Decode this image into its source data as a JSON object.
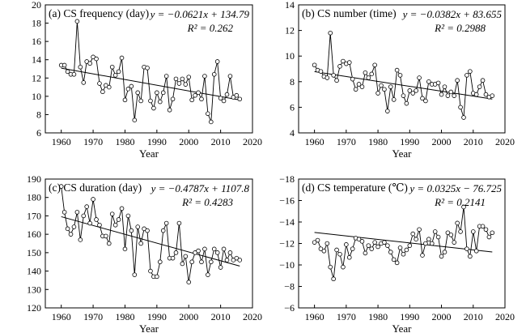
{
  "chart_data": [
    {
      "type": "line",
      "title": "(a) CS frequency (day)",
      "equation": "y = −0.0621x + 134.79",
      "r2": "R² = 0.262",
      "xlabel": "Year",
      "xlim": [
        1955,
        2020
      ],
      "ylim": [
        6,
        20
      ],
      "xticks": [
        1960,
        1970,
        1980,
        1990,
        2000,
        2010,
        2020
      ],
      "yticks": [
        6,
        8,
        10,
        12,
        14,
        16,
        18,
        20
      ],
      "trend": {
        "slope": -0.0621,
        "intercept": 134.79
      },
      "x": [
        1960,
        1961,
        1962,
        1963,
        1964,
        1965,
        1966,
        1967,
        1968,
        1969,
        1970,
        1971,
        1972,
        1973,
        1974,
        1975,
        1976,
        1977,
        1978,
        1979,
        1980,
        1981,
        1982,
        1983,
        1984,
        1985,
        1986,
        1987,
        1988,
        1989,
        1990,
        1991,
        1992,
        1993,
        1994,
        1995,
        1996,
        1997,
        1998,
        1999,
        2000,
        2001,
        2002,
        2003,
        2004,
        2005,
        2006,
        2007,
        2008,
        2009,
        2010,
        2011,
        2012,
        2013,
        2014,
        2015,
        2016
      ],
      "values": [
        13.4,
        13.4,
        12.7,
        12.4,
        12.4,
        18.2,
        13.2,
        11.5,
        13.8,
        13.6,
        14.3,
        14.1,
        11.4,
        10.5,
        11.2,
        11,
        13.2,
        12.3,
        12.7,
        14.2,
        9.6,
        10.8,
        11.1,
        7.4,
        10.4,
        9.5,
        13.2,
        13.1,
        9.5,
        8.7,
        10.4,
        9.4,
        10.4,
        12.2,
        8.5,
        9.7,
        11.9,
        11.4,
        11.9,
        11.3,
        12.1,
        9.6,
        10.1,
        10.4,
        9.7,
        12.2,
        8.1,
        7.2,
        12.4,
        13.8,
        9.8,
        9.5,
        10.2,
        12.2,
        9.9,
        10.1,
        9.7
      ]
    },
    {
      "type": "line",
      "title": "(b) CS number (time)",
      "equation": "y = −0.0382x + 83.655",
      "r2": "R² = 0.2988",
      "xlabel": "Year",
      "xlim": [
        1955,
        2020
      ],
      "ylim": [
        4,
        14
      ],
      "xticks": [
        1960,
        1970,
        1980,
        1990,
        2000,
        2010,
        2020
      ],
      "yticks": [
        4,
        6,
        8,
        10,
        12,
        14
      ],
      "trend": {
        "slope": -0.0382,
        "intercept": 83.655
      },
      "x": [
        1960,
        1961,
        1962,
        1963,
        1964,
        1965,
        1966,
        1967,
        1968,
        1969,
        1970,
        1971,
        1972,
        1973,
        1974,
        1975,
        1976,
        1977,
        1978,
        1979,
        1980,
        1981,
        1982,
        1983,
        1984,
        1985,
        1986,
        1987,
        1988,
        1989,
        1990,
        1991,
        1992,
        1993,
        1994,
        1995,
        1996,
        1997,
        1998,
        1999,
        2000,
        2001,
        2002,
        2003,
        2004,
        2005,
        2006,
        2007,
        2008,
        2009,
        2010,
        2011,
        2012,
        2013,
        2014,
        2015,
        2016
      ],
      "values": [
        9.3,
        8.9,
        8.8,
        8.4,
        8.3,
        11.8,
        8.5,
        8.1,
        9.2,
        9.6,
        9.4,
        9.5,
        8.2,
        7.4,
        7.8,
        7.6,
        8.7,
        8.3,
        8.6,
        9.3,
        7.1,
        7.7,
        7.4,
        5.7,
        7.6,
        6.6,
        8.9,
        8.5,
        6.9,
        6.3,
        7.3,
        7.1,
        7.3,
        8.3,
        6.7,
        6.5,
        8.0,
        7.8,
        7.8,
        7.9,
        7.0,
        7.6,
        6.9,
        7.2,
        6.9,
        8.1,
        6.0,
        5.2,
        8.5,
        8.8,
        7.1,
        7.0,
        7.6,
        8.1,
        7.0,
        6.8,
        6.9
      ]
    },
    {
      "type": "line",
      "title": "(c) CS duration (day)",
      "equation": "y = −0.4787x + 1107.8",
      "r2": "R² = 0.4283",
      "xlabel": "Year",
      "xlim": [
        1955,
        2020
      ],
      "ylim": [
        120,
        190
      ],
      "xticks": [
        1960,
        1970,
        1980,
        1990,
        2000,
        2010,
        2020
      ],
      "yticks": [
        120,
        130,
        140,
        150,
        160,
        170,
        180,
        190
      ],
      "trend": {
        "slope": -0.4787,
        "intercept": 1107.8
      },
      "x": [
        1960,
        1961,
        1962,
        1963,
        1964,
        1965,
        1966,
        1967,
        1968,
        1969,
        1970,
        1971,
        1972,
        1973,
        1974,
        1975,
        1976,
        1977,
        1978,
        1979,
        1980,
        1981,
        1982,
        1983,
        1984,
        1985,
        1986,
        1987,
        1988,
        1989,
        1990,
        1991,
        1992,
        1993,
        1994,
        1995,
        1996,
        1997,
        1998,
        1999,
        2000,
        2001,
        2002,
        2003,
        2004,
        2005,
        2006,
        2007,
        2008,
        2009,
        2010,
        2011,
        2012,
        2013,
        2014,
        2015,
        2016
      ],
      "values": [
        186,
        172,
        163,
        160,
        164,
        172,
        157,
        170,
        175,
        166,
        179,
        168,
        165,
        159,
        159,
        155,
        171,
        165,
        168,
        174,
        152,
        170,
        162,
        138,
        164,
        155,
        163,
        162,
        140,
        137,
        137,
        145,
        162,
        166,
        147,
        147,
        150,
        166,
        144,
        148,
        134,
        145,
        150,
        151,
        145,
        152,
        138,
        145,
        152,
        150,
        142,
        152,
        146,
        150,
        146,
        147,
        146
      ]
    },
    {
      "type": "line",
      "title": "(d) CS temperature (℃)",
      "equation": "y = 0.0325x − 76.725",
      "r2": "R² = 0.2141",
      "xlabel": "Year",
      "xlim": [
        1955,
        2020
      ],
      "ylim": [
        -18,
        -6
      ],
      "yaxis_inverted": true,
      "xticks": [
        1960,
        1970,
        1980,
        1990,
        2000,
        2010,
        2020
      ],
      "yticks": [
        -18,
        -16,
        -14,
        -12,
        -10,
        -8,
        -6
      ],
      "trend": {
        "slope": 0.0325,
        "intercept": -76.725
      },
      "x": [
        1960,
        1961,
        1962,
        1963,
        1964,
        1965,
        1966,
        1967,
        1968,
        1969,
        1970,
        1971,
        1972,
        1973,
        1974,
        1975,
        1976,
        1977,
        1978,
        1979,
        1980,
        1981,
        1982,
        1983,
        1984,
        1985,
        1986,
        1987,
        1988,
        1989,
        1990,
        1991,
        1992,
        1993,
        1994,
        1995,
        1996,
        1997,
        1998,
        1999,
        2000,
        2001,
        2002,
        2003,
        2004,
        2005,
        2006,
        2007,
        2008,
        2009,
        2010,
        2011,
        2012,
        2013,
        2014,
        2015,
        2016
      ],
      "values": [
        -12.1,
        -12.3,
        -11.5,
        -11.3,
        -12.0,
        -9.8,
        -8.7,
        -11.4,
        -11.0,
        -9.8,
        -11.9,
        -10.7,
        -11.5,
        -12.5,
        -12.4,
        -12.2,
        -11.1,
        -11.8,
        -11.5,
        -12.1,
        -11.7,
        -12.0,
        -12.1,
        -11.8,
        -11.2,
        -10.5,
        -10.2,
        -11.6,
        -11.0,
        -11.4,
        -11.8,
        -12.9,
        -12.4,
        -13.3,
        -10.9,
        -12.0,
        -12.4,
        -12.0,
        -13.1,
        -12.6,
        -10.8,
        -11.2,
        -13.0,
        -12.8,
        -12.1,
        -13.9,
        -13.1,
        -15.4,
        -11.5,
        -10.8,
        -13.1,
        -11.3,
        -13.6,
        -13.6,
        -13.3,
        -12.6,
        -13.0
      ]
    }
  ]
}
